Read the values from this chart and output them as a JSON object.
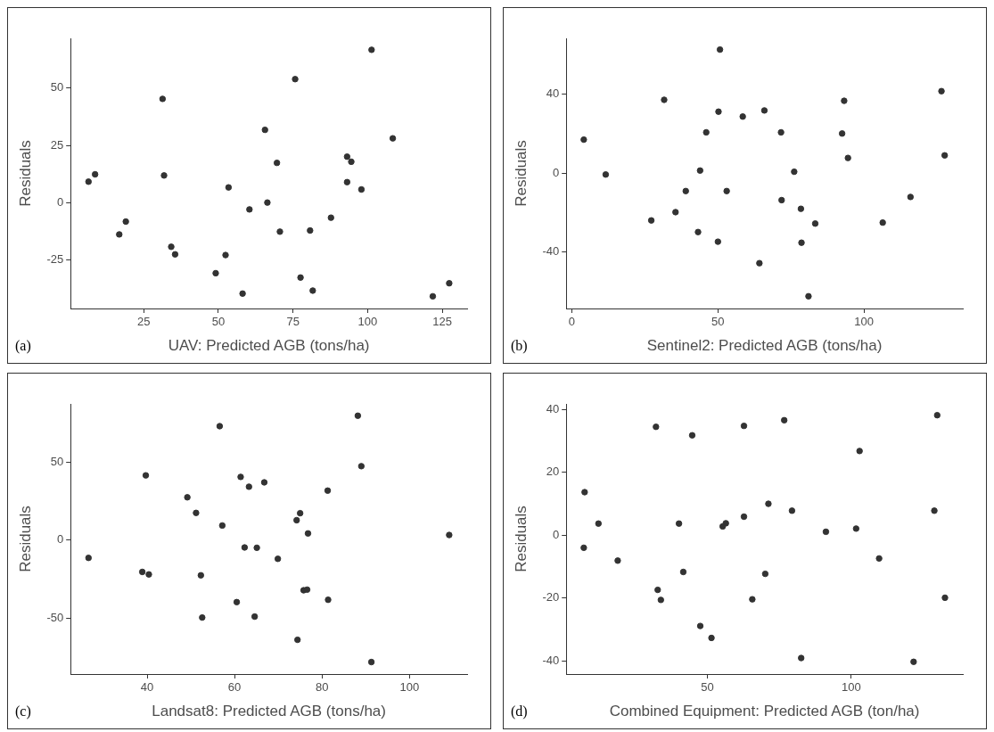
{
  "chart_data": [
    {
      "type": "scatter",
      "xlabel": "UAV: Predicted AGB (tons/ha)",
      "ylabel": "Residuals",
      "annotations": [
        "(a)"
      ],
      "color": "#333333",
      "marker": "circle",
      "xlim": [
        0.5,
        133.3
      ],
      "ylim": [
        -46.1,
        71.7
      ],
      "xticks": [
        25,
        50,
        75,
        100,
        125
      ],
      "yticks": [
        -25,
        0,
        25,
        50
      ],
      "x": [
        6.5,
        8.7,
        16.8,
        19.0,
        31.3,
        31.8,
        34.2,
        35.5,
        49.1,
        52.4,
        53.4,
        58.1,
        60.4,
        65.6,
        66.4,
        69.6,
        70.6,
        75.7,
        77.5,
        80.7,
        81.6,
        87.7,
        93.1,
        94.5,
        93.1,
        97.9,
        101.3,
        108.4,
        121.8,
        127.3
      ],
      "values": [
        9.2,
        12.4,
        -13.8,
        -8.2,
        45.3,
        11.9,
        -19.2,
        -22.5,
        -30.7,
        -22.8,
        6.7,
        -39.6,
        -2.9,
        31.8,
        0.1,
        17.4,
        -12.6,
        53.9,
        -32.6,
        -12.1,
        -38.3,
        -6.5,
        20.1,
        17.9,
        9.0,
        5.8,
        66.7,
        28.1,
        -40.8,
        -35.1
      ]
    },
    {
      "type": "scatter",
      "xlabel": "Sentinel2: Predicted AGB (tons/ha)",
      "ylabel": "Residuals",
      "annotations": [
        "(b)"
      ],
      "color": "#333333",
      "marker": "circle",
      "xlim": [
        -1.9,
        133.8
      ],
      "ylim": [
        -68.7,
        68.4
      ],
      "xticks": [
        0,
        50,
        100
      ],
      "yticks": [
        -40,
        0,
        40
      ],
      "x": [
        4.1,
        11.6,
        27.2,
        31.6,
        35.5,
        39.0,
        43.2,
        43.9,
        46.0,
        50.0,
        50.2,
        50.7,
        53.0,
        58.5,
        64.2,
        65.9,
        71.6,
        71.8,
        76.1,
        78.4,
        78.6,
        81.0,
        83.3,
        92.5,
        93.2,
        94.5,
        106.4,
        115.9,
        126.5,
        127.6
      ],
      "values": [
        17.0,
        -0.7,
        -24.0,
        37.2,
        -19.8,
        -9.1,
        -29.9,
        1.3,
        20.7,
        -34.8,
        31.2,
        62.7,
        -9.1,
        28.7,
        -45.7,
        31.8,
        20.7,
        -13.7,
        0.7,
        -18.1,
        -35.3,
        -62.5,
        -25.6,
        20.1,
        36.7,
        7.7,
        -25.1,
        -12.1,
        41.6,
        9.0
      ]
    },
    {
      "type": "scatter",
      "xlabel": "Landsat8: Predicted AGB (tons/ha)",
      "ylabel": "Residuals",
      "annotations": [
        "(c)"
      ],
      "color": "#333333",
      "marker": "circle",
      "xlim": [
        22.5,
        113.2
      ],
      "ylim": [
        -86.0,
        87.5
      ],
      "xticks": [
        40,
        60,
        80,
        100
      ],
      "yticks": [
        -50,
        0,
        50
      ],
      "x": [
        26.6,
        38.9,
        40.4,
        39.7,
        49.2,
        51.2,
        52.3,
        52.6,
        56.6,
        57.2,
        60.5,
        61.4,
        62.3,
        63.3,
        64.6,
        65.1,
        66.8,
        69.9,
        74.2,
        74.4,
        75.0,
        75.8,
        76.6,
        76.8,
        81.3,
        81.4,
        88.2,
        89.0,
        91.3,
        109.1
      ],
      "values": [
        -11.4,
        -20.4,
        -22.0,
        41.6,
        27.5,
        17.5,
        -22.6,
        -49.7,
        73.2,
        9.4,
        -39.8,
        40.6,
        -4.7,
        34.3,
        -49.1,
        -4.9,
        37.1,
        -12.0,
        12.8,
        -64.0,
        17.3,
        -32.2,
        -31.8,
        4.3,
        31.8,
        -38.3,
        79.9,
        47.5,
        -78.3,
        3.3
      ]
    },
    {
      "type": "scatter",
      "xlabel": "Combined Equipment: Predicted AGB (ton/ha)",
      "ylabel": "Residuals",
      "annotations": [
        "(d)"
      ],
      "color": "#333333",
      "marker": "circle",
      "xlim": [
        0.9,
        138.8
      ],
      "ylim": [
        -44.2,
        41.8
      ],
      "xticks": [
        50,
        100
      ],
      "yticks": [
        -40,
        -20,
        0,
        20,
        40
      ],
      "x": [
        7.3,
        7.0,
        12.1,
        18.8,
        32.1,
        32.7,
        33.8,
        40.1,
        41.6,
        44.7,
        47.5,
        51.4,
        55.3,
        56.4,
        62.7,
        62.7,
        65.6,
        70.1,
        71.2,
        76.7,
        79.4,
        82.6,
        91.2,
        101.7,
        102.9,
        109.7,
        121.7,
        128.9,
        129.9,
        132.6
      ],
      "values": [
        13.7,
        -4.0,
        3.7,
        -8.1,
        34.5,
        -17.4,
        -20.6,
        3.7,
        -11.7,
        31.8,
        -28.9,
        -32.7,
        2.8,
        3.8,
        5.9,
        34.8,
        -20.4,
        -12.3,
        10.0,
        36.6,
        7.8,
        -39.1,
        1.1,
        2.1,
        26.8,
        -7.4,
        -40.3,
        7.8,
        38.2,
        -19.9
      ]
    }
  ]
}
